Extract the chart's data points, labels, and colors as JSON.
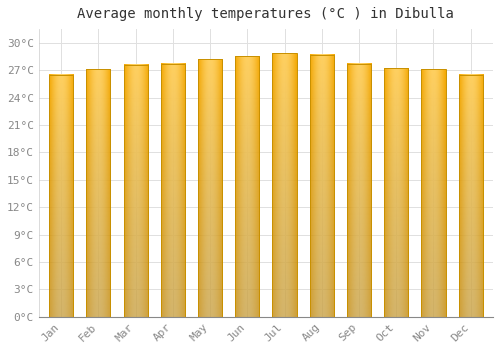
{
  "title": "Average monthly temperatures (°C ) in Dibulla",
  "months": [
    "Jan",
    "Feb",
    "Mar",
    "Apr",
    "May",
    "Jun",
    "Jul",
    "Aug",
    "Sep",
    "Oct",
    "Nov",
    "Dec"
  ],
  "values": [
    26.5,
    27.1,
    27.6,
    27.7,
    28.2,
    28.5,
    28.9,
    28.7,
    27.7,
    27.2,
    27.1,
    26.5
  ],
  "bar_color_center": "#FFD060",
  "bar_color_edge": "#F5A800",
  "bar_border_color": "#C89000",
  "yticks": [
    0,
    3,
    6,
    9,
    12,
    15,
    18,
    21,
    24,
    27,
    30
  ],
  "ytick_labels": [
    "0°C",
    "3°C",
    "6°C",
    "9°C",
    "12°C",
    "15°C",
    "18°C",
    "21°C",
    "24°C",
    "27°C",
    "30°C"
  ],
  "ylim": [
    0,
    31.5
  ],
  "background_color": "#ffffff",
  "grid_color": "#e0e0e0",
  "title_fontsize": 10,
  "tick_fontsize": 8,
  "bar_width": 0.65,
  "tick_color": "#888888"
}
